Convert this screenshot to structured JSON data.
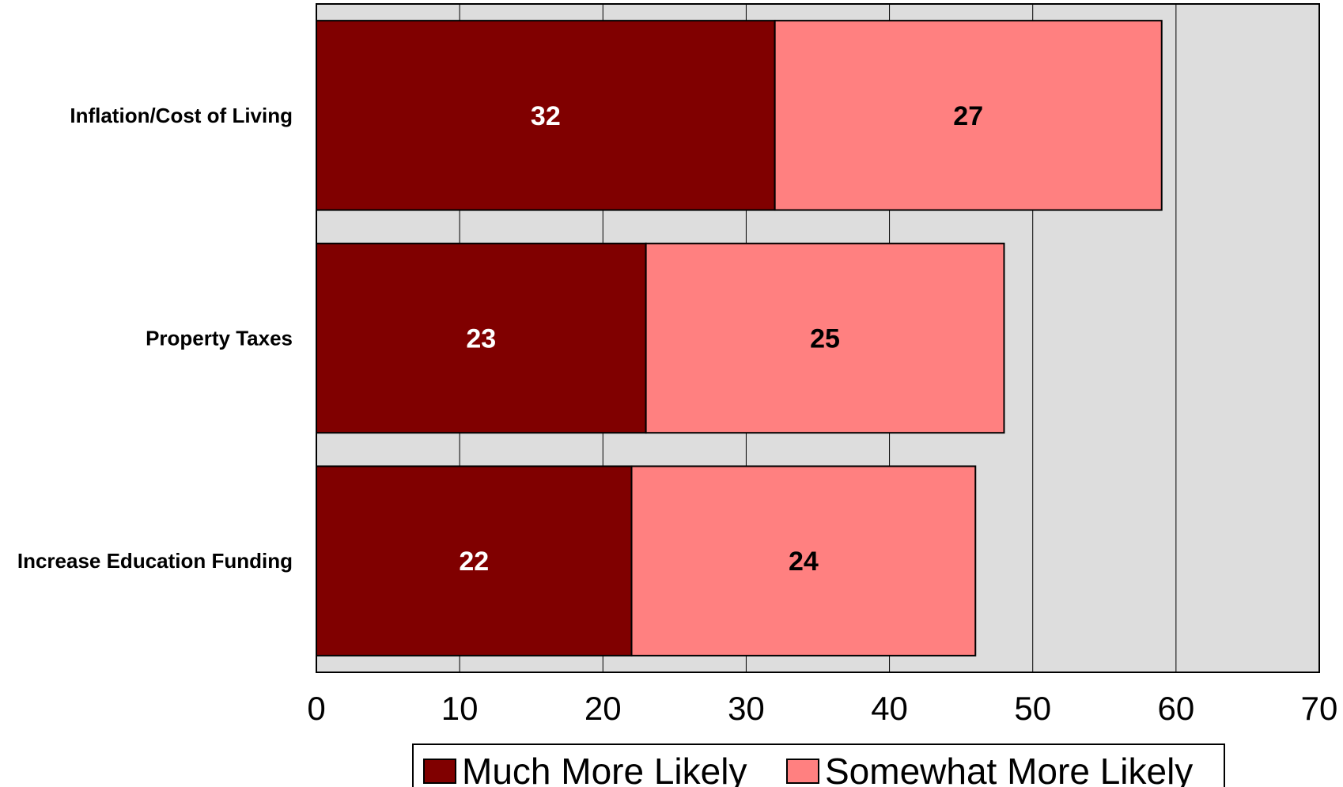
{
  "chart_data": {
    "type": "bar",
    "orientation": "horizontal",
    "stacked": true,
    "categories": [
      "Inflation/Cost of Living",
      "Property Taxes",
      "Increase Education Funding"
    ],
    "series": [
      {
        "name": "Much More Likely",
        "values": [
          32,
          23,
          22
        ],
        "color": "#800000",
        "label_color": "#ffffff"
      },
      {
        "name": "Somewhat More Likely",
        "values": [
          27,
          25,
          24
        ],
        "color": "#ff8080",
        "label_color": "#000000"
      }
    ],
    "xlim": [
      0,
      70
    ],
    "x_ticks": [
      0,
      10,
      20,
      30,
      40,
      50,
      60,
      70
    ],
    "grid": true,
    "plot_background": "#dddddd",
    "legend_position": "bottom"
  }
}
